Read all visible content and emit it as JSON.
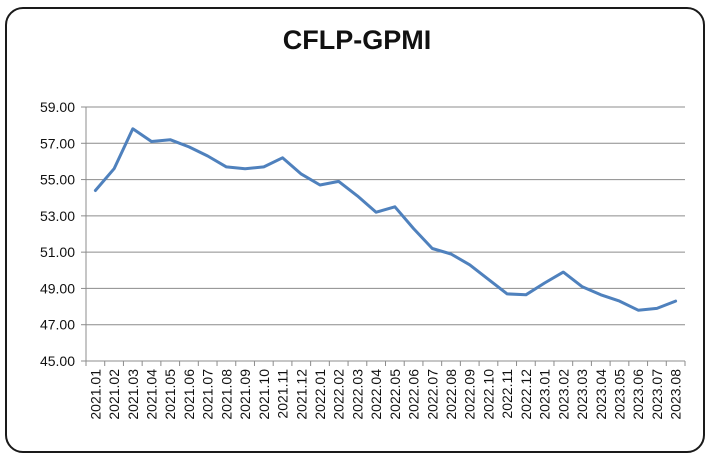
{
  "chart_data": {
    "type": "line",
    "title": "CFLP-GPMI",
    "xlabel": "",
    "ylabel": "",
    "ylim": [
      45,
      59
    ],
    "yticks": [
      "45.00",
      "47.00",
      "49.00",
      "51.00",
      "53.00",
      "55.00",
      "57.00",
      "59.00"
    ],
    "grid": true,
    "legend": "none",
    "line_color": "#4F81BD",
    "categories": [
      "2021.01",
      "2021.02",
      "2021.03",
      "2021.04",
      "2021.05",
      "2021.06",
      "2021.07",
      "2021.08",
      "2021.09",
      "2021.10",
      "2021.11",
      "2021.12",
      "2022.01",
      "2022.02",
      "2022.03",
      "2022.04",
      "2022.05",
      "2022.06",
      "2022.07",
      "2022.08",
      "2022.09",
      "2022.10",
      "2022.11",
      "2022.12",
      "2023.01",
      "2023.02",
      "2023.03",
      "2023.04",
      "2023.05",
      "2023.06",
      "2023.07",
      "2023.08"
    ],
    "series": [
      {
        "values": [
          54.4,
          55.6,
          57.8,
          57.1,
          57.2,
          56.8,
          56.3,
          55.7,
          55.6,
          55.7,
          56.2,
          55.3,
          54.7,
          54.9,
          54.1,
          53.2,
          53.5,
          52.3,
          51.2,
          50.9,
          50.3,
          49.5,
          48.7,
          48.65,
          49.3,
          49.9,
          49.1,
          48.65,
          48.3,
          47.8,
          47.9,
          48.3
        ]
      }
    ]
  }
}
